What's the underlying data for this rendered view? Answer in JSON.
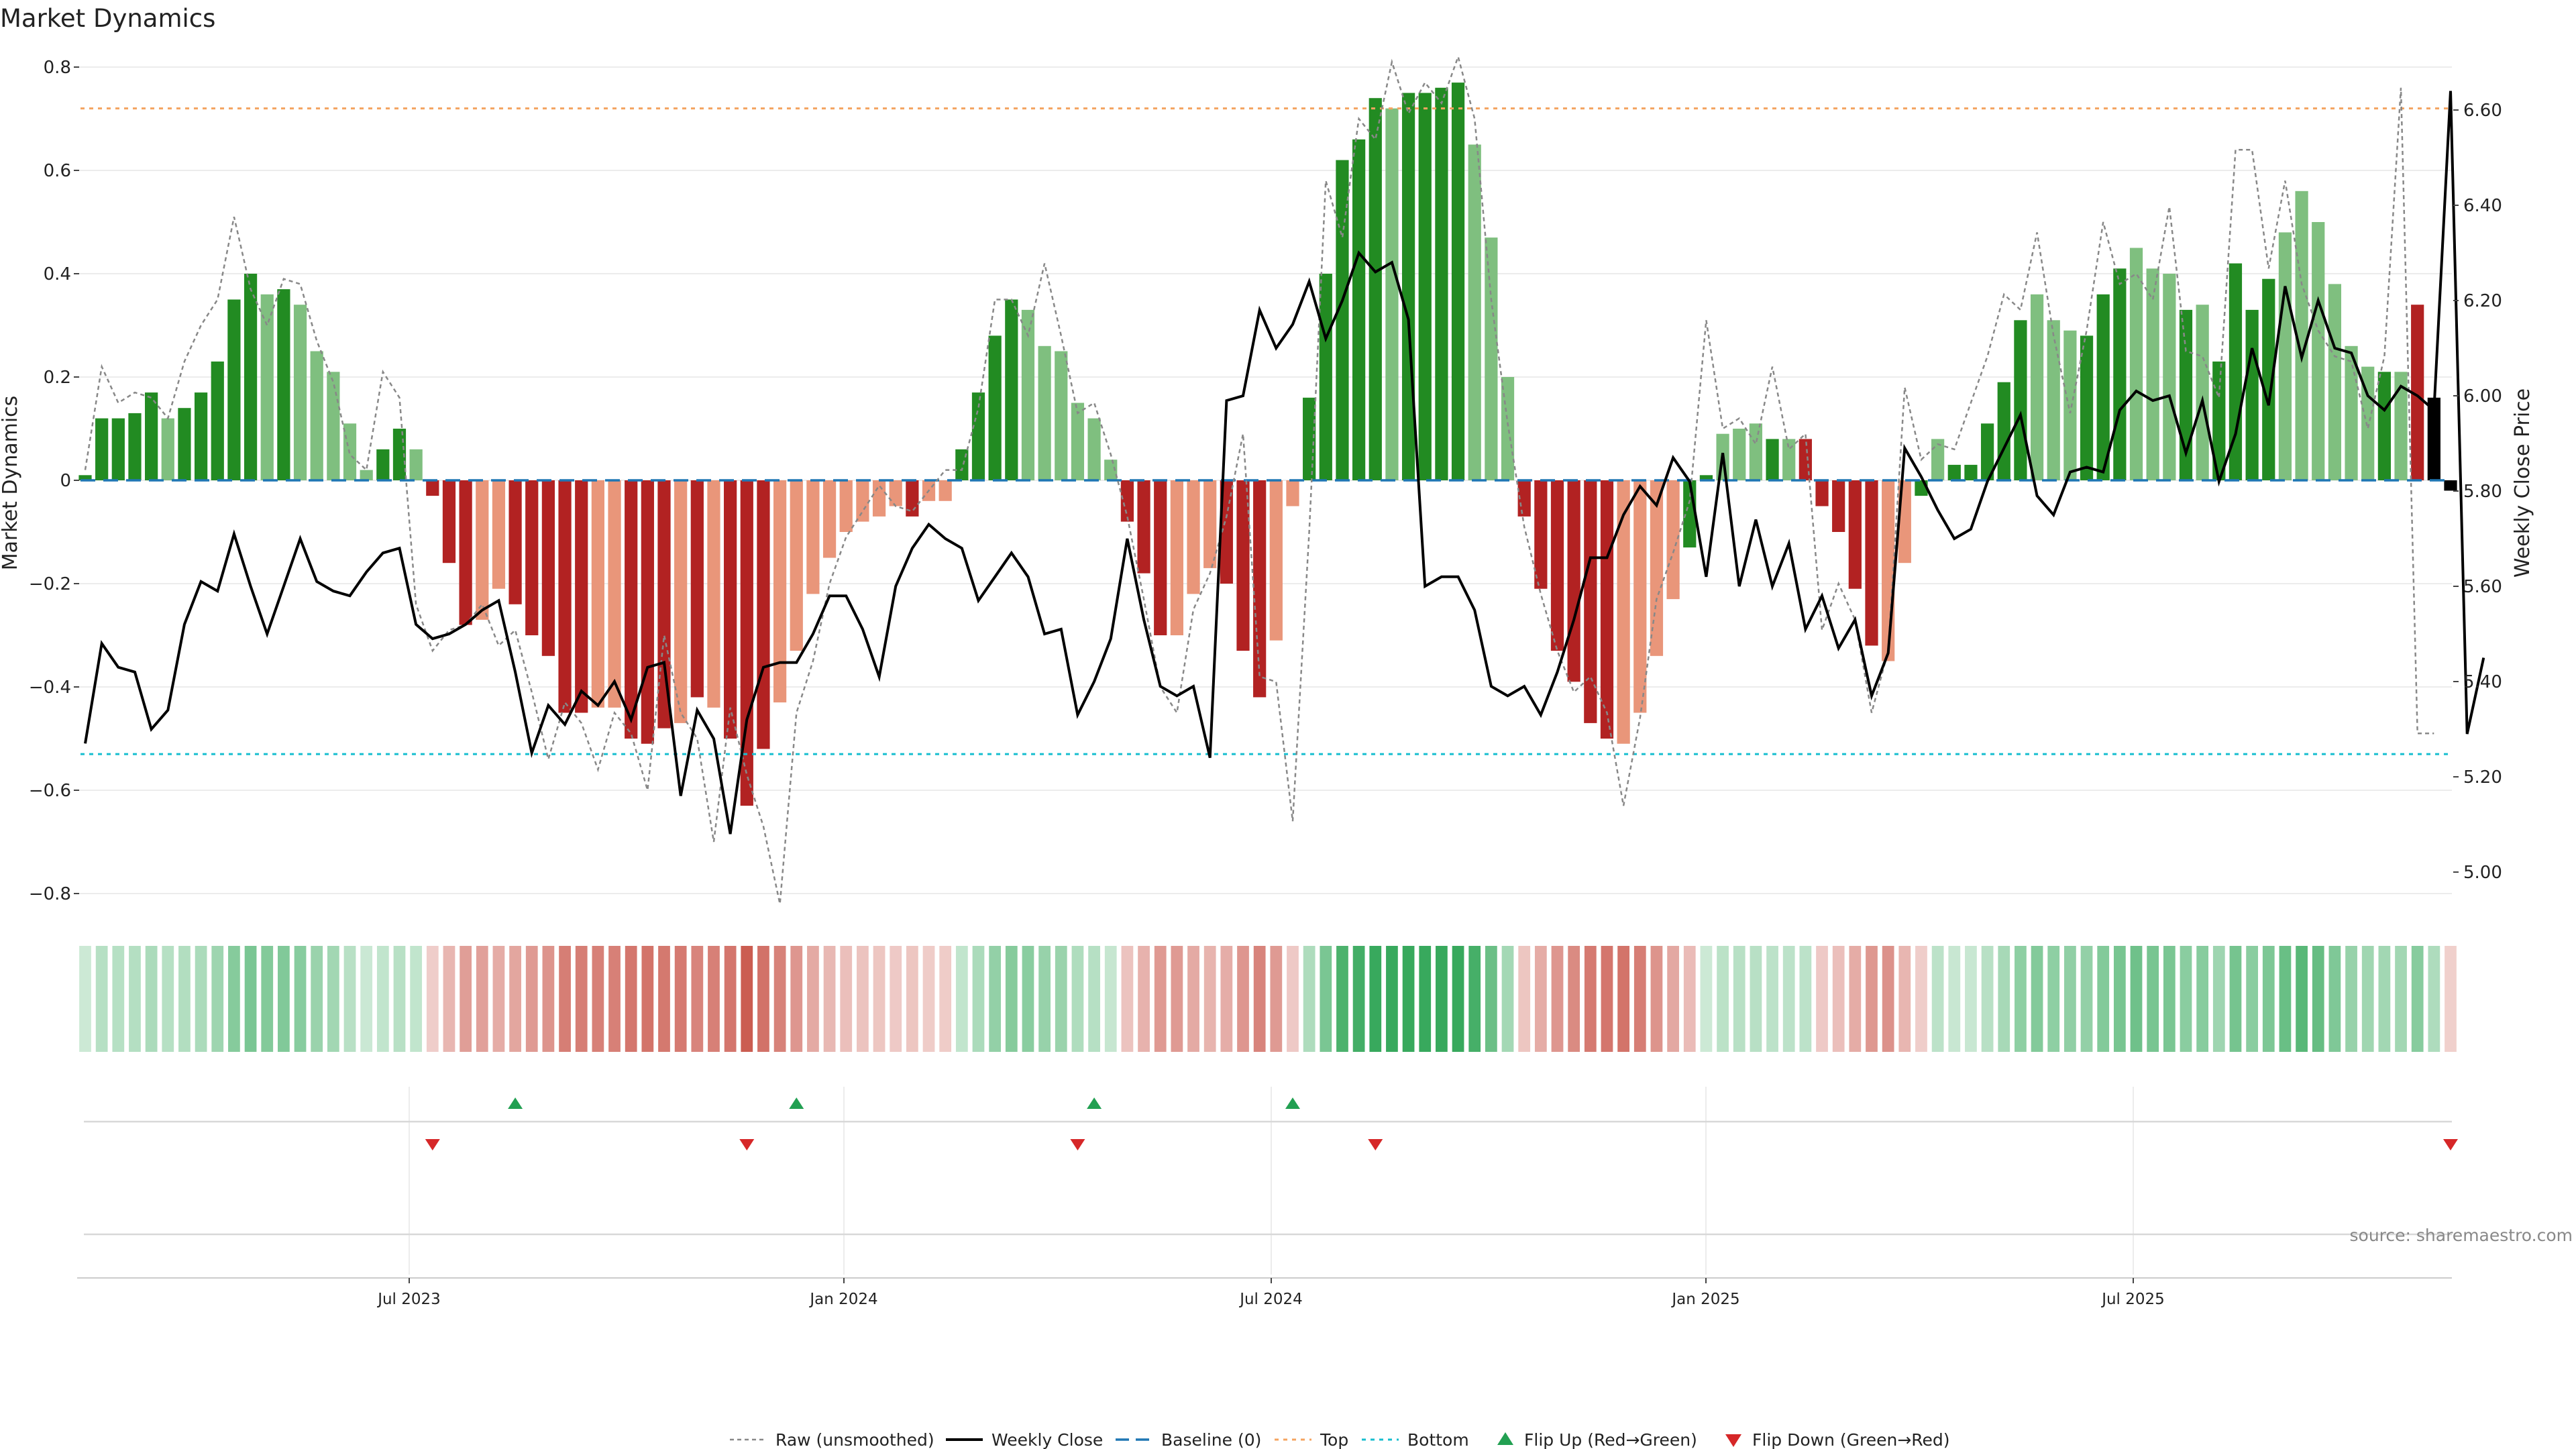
{
  "chart_data": {
    "type": "bar",
    "title": "Market Dynamics",
    "ylabel": "Market Dynamics",
    "y2label": "Weekly Close Price",
    "ylim": [
      -0.8,
      0.8
    ],
    "y2lim": [
      5.0,
      6.6
    ],
    "yticks": [
      "0.8",
      "0.6",
      "0.4",
      "0.2",
      "0",
      "−0.2",
      "−0.4",
      "−0.6",
      "−0.8"
    ],
    "y2ticks": [
      "6.60",
      "6.40",
      "6.20",
      "6.00",
      "5.80",
      "5.60",
      "5.40",
      "5.20",
      "5.00"
    ],
    "xticks": [
      "Jul 2023",
      "Jan 2024",
      "Jul 2024",
      "Jan 2025",
      "Jul 2025"
    ],
    "top": 0.72,
    "bottom": -0.53,
    "baseline": 0,
    "bars": [
      0.01,
      0.12,
      0.12,
      0.13,
      0.17,
      0.12,
      0.14,
      0.17,
      0.23,
      0.35,
      0.4,
      0.36,
      0.37,
      0.34,
      0.25,
      0.21,
      0.11,
      0.02,
      0.06,
      0.1,
      0.06,
      -0.03,
      -0.16,
      -0.28,
      -0.27,
      -0.21,
      -0.24,
      -0.3,
      -0.34,
      -0.45,
      -0.45,
      -0.44,
      -0.44,
      -0.5,
      -0.51,
      -0.48,
      -0.47,
      -0.42,
      -0.44,
      -0.5,
      -0.63,
      -0.52,
      -0.43,
      -0.33,
      -0.22,
      -0.15,
      -0.1,
      -0.08,
      -0.07,
      -0.05,
      -0.07,
      -0.04,
      -0.04,
      0.06,
      0.17,
      0.28,
      0.35,
      0.33,
      0.26,
      0.25,
      0.15,
      0.12,
      0.04,
      -0.08,
      -0.18,
      -0.3,
      -0.3,
      -0.22,
      -0.17,
      -0.2,
      -0.33,
      -0.42,
      -0.31,
      -0.05,
      0.16,
      0.4,
      0.62,
      0.66,
      0.74,
      0.72,
      0.75,
      0.75,
      0.76,
      0.77,
      0.65,
      0.47,
      0.2,
      -0.07,
      -0.21,
      -0.33,
      -0.39,
      -0.47,
      -0.5,
      -0.51,
      -0.45,
      -0.34,
      -0.23,
      -0.13,
      0.01,
      0.09,
      0.1,
      0.11,
      0.08,
      0.08,
      0.08,
      -0.05,
      -0.1,
      -0.21,
      -0.32,
      -0.35,
      -0.16,
      -0.03,
      0.08,
      0.03,
      0.03,
      0.11,
      0.19,
      0.31,
      0.36,
      0.31,
      0.29,
      0.28,
      0.36,
      0.41,
      0.45,
      0.41,
      0.4,
      0.33,
      0.34,
      0.23,
      0.42,
      0.33,
      0.39,
      0.48,
      0.56,
      0.5,
      0.38,
      0.26,
      0.22,
      0.21,
      0.21,
      0.34,
      0.16,
      -0.02
    ],
    "bar_colors": [
      "#228b22",
      "#228b22",
      "#228b22",
      "#228b22",
      "#228b22",
      "#7fbf7f",
      "#228b22",
      "#228b22",
      "#228b22",
      "#228b22",
      "#228b22",
      "#7fbf7f",
      "#228b22",
      "#7fbf7f",
      "#7fbf7f",
      "#7fbf7f",
      "#7fbf7f",
      "#7fbf7f",
      "#228b22",
      "#228b22",
      "#7fbf7f",
      "#b22222",
      "#b22222",
      "#b22222",
      "#e9967a",
      "#e9967a",
      "#b22222",
      "#b22222",
      "#b22222",
      "#b22222",
      "#b22222",
      "#e9967a",
      "#e9967a",
      "#b22222",
      "#b22222",
      "#b22222",
      "#e9967a",
      "#b22222",
      "#e9967a",
      "#b22222",
      "#b22222",
      "#b22222",
      "#e9967a",
      "#e9967a",
      "#e9967a",
      "#e9967a",
      "#e9967a",
      "#e9967a",
      "#e9967a",
      "#e9967a",
      "#b22222",
      "#e9967a",
      "#e9967a",
      "#228b22",
      "#228b22",
      "#228b22",
      "#228b22",
      "#7fbf7f",
      "#7fbf7f",
      "#7fbf7f",
      "#7fbf7f",
      "#7fbf7f",
      "#7fbf7f",
      "#b22222",
      "#b22222",
      "#b22222",
      "#e9967a",
      "#e9967a",
      "#e9967a",
      "#b22222",
      "#b22222",
      "#b22222",
      "#e9967a",
      "#e9967a",
      "#228b22",
      "#228b22",
      "#228b22",
      "#228b22",
      "#228b22",
      "#7fbf7f",
      "#228b22",
      "#228b22",
      "#228b22",
      "#228b22",
      "#7fbf7f",
      "#7fbf7f",
      "#7fbf7f",
      "#b22222",
      "#b22222",
      "#b22222",
      "#b22222",
      "#b22222",
      "#b22222",
      "#e9967a",
      "#e9967a",
      "#e9967a",
      "#e9967a",
      "#228b22",
      "#228b22",
      "#7fbf7f",
      "#7fbf7f",
      "#7fbf7f",
      "#228b22",
      "#7fbf7f",
      "#b22222",
      "#b22222",
      "#b22222",
      "#b22222",
      "#b22222",
      "#e9967a",
      "#e9967a",
      "#228b22",
      "#7fbf7f",
      "#228b22",
      "#228b22",
      "#228b22",
      "#228b22",
      "#228b22",
      "#7fbf7f",
      "#7fbf7f",
      "#7fbf7f",
      "#228b22",
      "#228b22",
      "#228b22",
      "#7fbf7f",
      "#7fbf7f",
      "#7fbf7f",
      "#228b22",
      "#7fbf7f",
      "#228b22",
      "#228b22",
      "#228b22",
      "#228b22",
      "#7fbf7f",
      "#7fbf7f",
      "#7fbf7f",
      "#7fbf7f",
      "#7fbf7f",
      "#7fbf7f",
      "#228b22",
      "#7fbf7f",
      "#b22222"
    ],
    "raw": [
      0.02,
      0.22,
      0.15,
      0.17,
      0.16,
      0.12,
      0.23,
      0.3,
      0.35,
      0.51,
      0.37,
      0.3,
      0.39,
      0.38,
      0.27,
      0.19,
      0.05,
      0.02,
      0.21,
      0.16,
      -0.24,
      -0.33,
      -0.29,
      -0.28,
      -0.24,
      -0.32,
      -0.29,
      -0.41,
      -0.54,
      -0.43,
      -0.47,
      -0.56,
      -0.45,
      -0.49,
      -0.6,
      -0.3,
      -0.45,
      -0.5,
      -0.7,
      -0.44,
      -0.57,
      -0.67,
      -0.82,
      -0.45,
      -0.35,
      -0.2,
      -0.11,
      -0.06,
      -0.01,
      -0.05,
      -0.06,
      -0.02,
      0.02,
      0.02,
      0.14,
      0.35,
      0.35,
      0.28,
      0.42,
      0.28,
      0.13,
      0.15,
      0.05,
      -0.07,
      -0.23,
      -0.4,
      -0.45,
      -0.25,
      -0.18,
      -0.07,
      0.09,
      -0.38,
      -0.39,
      -0.66,
      -0.1,
      0.58,
      0.47,
      0.7,
      0.66,
      0.81,
      0.71,
      0.77,
      0.73,
      0.82,
      0.7,
      0.35,
      0.11,
      -0.09,
      -0.22,
      -0.33,
      -0.41,
      -0.38,
      -0.45,
      -0.63,
      -0.46,
      -0.23,
      -0.14,
      -0.04,
      0.31,
      0.1,
      0.12,
      0.07,
      0.22,
      0.06,
      0.09,
      -0.29,
      -0.2,
      -0.27,
      -0.45,
      -0.33,
      0.18,
      0.04,
      0.07,
      0.06,
      0.15,
      0.24,
      0.36,
      0.33,
      0.48,
      0.28,
      0.13,
      0.29,
      0.5,
      0.38,
      0.4,
      0.35,
      0.53,
      0.25,
      0.24,
      0.16,
      0.64,
      0.64,
      0.41,
      0.58,
      0.38,
      0.29,
      0.24,
      0.23,
      0.1,
      0.24,
      0.76,
      -0.49,
      -0.49
    ],
    "weekly_close": [
      5.27,
      5.48,
      5.43,
      5.42,
      5.3,
      5.34,
      5.52,
      5.61,
      5.59,
      5.71,
      5.6,
      5.5,
      5.6,
      5.7,
      5.61,
      5.59,
      5.58,
      5.63,
      5.67,
      5.68,
      5.52,
      5.49,
      5.5,
      5.52,
      5.55,
      5.57,
      5.42,
      5.25,
      5.35,
      5.31,
      5.38,
      5.35,
      5.4,
      5.32,
      5.43,
      5.44,
      5.16,
      5.34,
      5.28,
      5.08,
      5.32,
      5.43,
      5.44,
      5.44,
      5.5,
      5.58,
      5.58,
      5.51,
      5.41,
      5.6,
      5.68,
      5.73,
      5.7,
      5.68,
      5.57,
      5.62,
      5.67,
      5.62,
      5.5,
      5.51,
      5.33,
      5.4,
      5.49,
      5.7,
      5.53,
      5.39,
      5.37,
      5.39,
      5.24,
      5.99,
      6.0,
      6.18,
      6.1,
      6.15,
      6.24,
      6.12,
      6.2,
      6.3,
      6.26,
      6.28,
      6.16,
      5.6,
      5.62,
      5.62,
      5.55,
      5.39,
      5.37,
      5.39,
      5.33,
      5.42,
      5.53,
      5.66,
      5.66,
      5.75,
      5.81,
      5.77,
      5.87,
      5.82,
      5.62,
      5.88,
      5.6,
      5.74,
      5.6,
      5.69,
      5.51,
      5.58,
      5.47,
      5.53,
      5.37,
      5.46,
      5.89,
      5.83,
      5.76,
      5.7,
      5.72,
      5.82,
      5.89,
      5.96,
      5.79,
      5.75,
      5.84,
      5.85,
      5.84,
      5.97,
      6.01,
      5.99,
      6.0,
      5.88,
      5.99,
      5.82,
      5.92,
      6.1,
      5.98,
      6.23,
      6.08,
      6.2,
      6.1,
      6.09,
      6.0,
      5.97,
      6.02,
      6.0,
      5.97,
      6.64,
      5.29,
      5.45
    ],
    "flip_up_index": [
      26,
      43,
      61,
      73
    ],
    "flip_down_index": [
      21,
      40,
      60,
      78,
      143
    ],
    "legend": [
      "Raw (unsmoothed)",
      "Weekly Close",
      "Baseline (0)",
      "Top",
      "Bottom",
      "Flip Up (Red→Green)",
      "Flip Down (Green→Red)"
    ],
    "source": "source: sharemaestro.com",
    "colors": {
      "strong_green": "#228b22",
      "light_green": "#7fbf7f",
      "strong_red": "#b22222",
      "light_red": "#e9967a",
      "top_line": "#f4a460",
      "bottom_line": "#17becf",
      "baseline": "#1f77b4",
      "flip_up": "#22a052",
      "flip_down": "#d62728"
    }
  }
}
